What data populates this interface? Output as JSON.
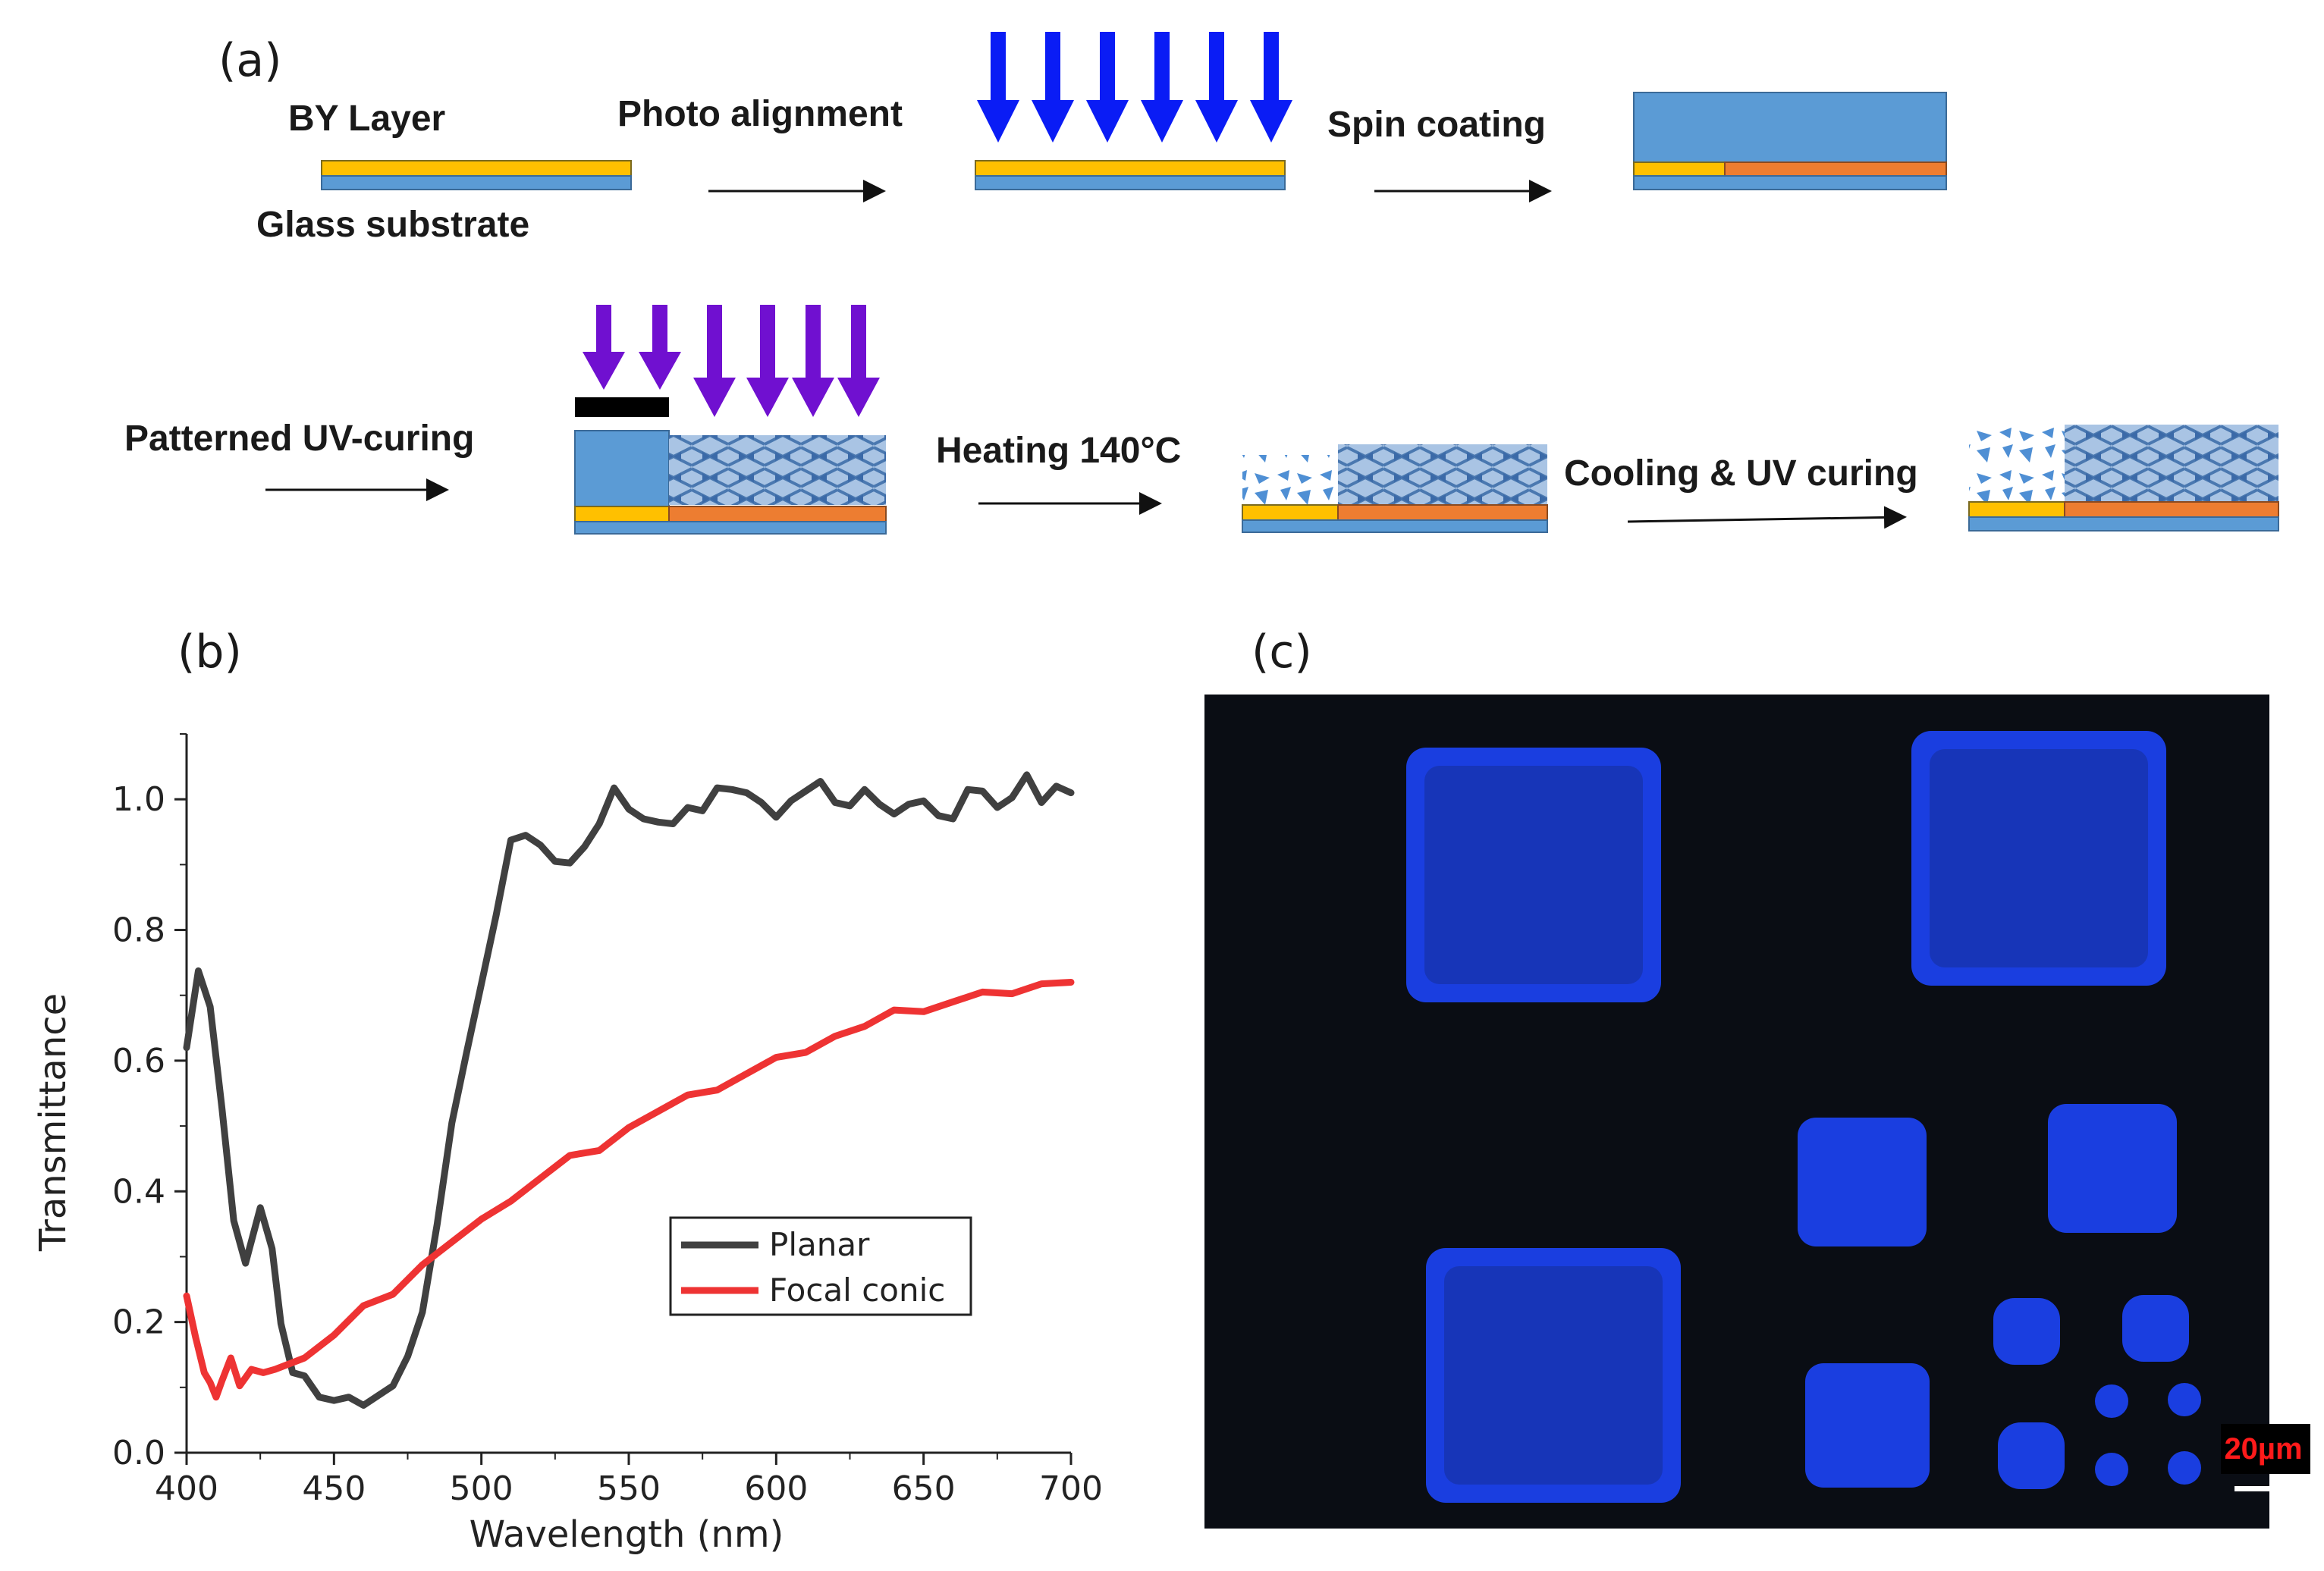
{
  "panel_a": {
    "tag": "(a)",
    "bylayer": "BY Layer",
    "glass": "Glass substrate",
    "photo": "Photo alignment",
    "spin": "Spin coating",
    "patterned": "Patterned UV-curing",
    "heating": "Heating 140°C",
    "cooling": "Cooling & UV curing"
  },
  "panel_b": {
    "tag": "(b)"
  },
  "panel_c": {
    "tag": "(c)",
    "scale": "20µm"
  },
  "colors": {
    "substrate": "#5b9bd5",
    "by_layer": "#ffc000",
    "orange": "#ed7d31",
    "uv_blue": "#0a1cf5",
    "uv_purple": "#7010d0",
    "planar": "#404040",
    "focal": "#ee3333",
    "micro_bg": "#0a0d14",
    "pixel": "#1a3ee0"
  },
  "chart_data": {
    "type": "line",
    "xlabel": "Wavelength (nm)",
    "ylabel": "Transmittance",
    "xlim": [
      400,
      700
    ],
    "ylim": [
      0,
      1.1
    ],
    "xticks": [
      "400",
      "450",
      "500",
      "550",
      "600",
      "650",
      "700"
    ],
    "yticks": [
      "0.0",
      "0.2",
      "0.4",
      "0.6",
      "0.8",
      "1.0"
    ],
    "legend": "inside center-right",
    "series": [
      {
        "name": "Planar",
        "x": [
          400,
          404,
          408,
          412,
          416,
          420,
          425,
          429,
          432,
          436,
          440,
          445,
          450,
          455,
          460,
          465,
          470,
          475,
          480,
          485,
          490,
          495,
          500,
          505,
          510,
          515,
          520,
          525,
          530,
          535,
          540,
          545,
          550,
          555,
          560,
          565,
          570,
          575,
          580,
          585,
          590,
          595,
          600,
          605,
          610,
          615,
          620,
          625,
          630,
          635,
          640,
          645,
          650,
          655,
          660,
          665,
          670,
          675,
          680,
          685,
          690,
          695,
          700
        ],
        "y": [
          0.62,
          0.74,
          0.68,
          0.52,
          0.36,
          0.29,
          0.37,
          0.32,
          0.2,
          0.12,
          0.11,
          0.09,
          0.08,
          0.08,
          0.08,
          0.09,
          0.1,
          0.14,
          0.22,
          0.35,
          0.5,
          0.62,
          0.72,
          0.82,
          0.93,
          0.95,
          0.93,
          0.9,
          0.91,
          0.93,
          0.96,
          1.01,
          0.99,
          0.97,
          0.96,
          0.97,
          0.99,
          0.98,
          1.01,
          1.02,
          1.01,
          0.99,
          0.98,
          1.0,
          1.01,
          1.02,
          1.0,
          0.99,
          1.01,
          1.0,
          0.98,
          0.99,
          0.99,
          0.98,
          0.97,
          1.01,
          1.02,
          0.99,
          1.0,
          1.03,
          1.0,
          1.02,
          1.01
        ]
      },
      {
        "name": "Focal conic",
        "x": [
          400,
          403,
          406,
          408,
          410,
          412,
          415,
          418,
          422,
          426,
          430,
          440,
          450,
          460,
          470,
          480,
          490,
          500,
          510,
          520,
          530,
          540,
          550,
          560,
          570,
          580,
          590,
          600,
          610,
          620,
          630,
          640,
          650,
          660,
          670,
          680,
          690,
          700
        ],
        "y": [
          0.24,
          0.18,
          0.12,
          0.1,
          0.09,
          0.11,
          0.14,
          0.11,
          0.13,
          0.12,
          0.12,
          0.15,
          0.18,
          0.22,
          0.25,
          0.29,
          0.32,
          0.35,
          0.39,
          0.42,
          0.45,
          0.47,
          0.5,
          0.52,
          0.54,
          0.56,
          0.58,
          0.6,
          0.62,
          0.64,
          0.65,
          0.67,
          0.68,
          0.69,
          0.7,
          0.71,
          0.72,
          0.72
        ]
      }
    ]
  }
}
